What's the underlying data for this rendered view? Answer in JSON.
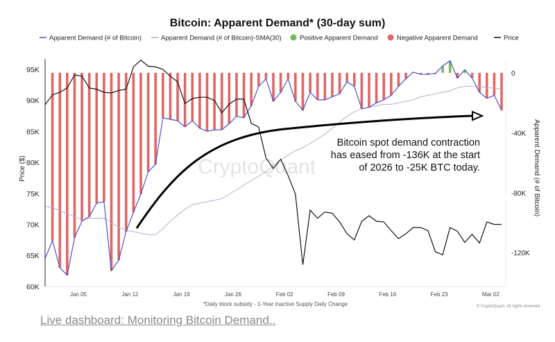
{
  "chart_data": {
    "type": "bar+line",
    "title": "Bitcoin: Apparent Demand* (30-day sum)",
    "legend": {
      "placement": "top",
      "entries": [
        {
          "label": "Apparent Demand (# of Bitcoin)",
          "symbol": "line",
          "color": "#5050c8"
        },
        {
          "label": "Apparent Demand (# of Bitcoin)-SMA(30)",
          "symbol": "line",
          "color": "#b0aed8"
        },
        {
          "label": "Positive Apparent Demand",
          "symbol": "dot",
          "color": "#6cc05a"
        },
        {
          "label": "Negative Apparent Demand",
          "symbol": "dot",
          "color": "#e06666"
        },
        {
          "label": "Price",
          "symbol": "line",
          "color": "#111111"
        }
      ]
    },
    "ylabel_left": "Price ($)",
    "ylabel_right": "Apparent Demand (# of Bitcoin)",
    "ylim_left": [
      60000,
      95000
    ],
    "ylim_right": [
      -136000,
      0
    ],
    "left_ticks": [
      "95K",
      "90K",
      "85K",
      "80K",
      "75K",
      "70K",
      "65K",
      "60K"
    ],
    "left_tick_values": [
      95,
      90,
      85,
      80,
      75,
      70,
      65,
      60
    ],
    "right_ticks": [
      "0",
      "-40K",
      "-80K",
      "-120K"
    ],
    "right_tick_values": [
      0,
      -40,
      -80,
      -120
    ],
    "x_ticks": [
      "Jan 05",
      "Jan 12",
      "Jan 19",
      "Jan 26",
      "Feb 02",
      "Feb 09",
      "Feb 16",
      "Feb 23",
      "Mar 02"
    ],
    "grid": false,
    "x": [
      "Dec 31",
      "Jan 01",
      "Jan 02",
      "Jan 03",
      "Jan 04",
      "Jan 05",
      "Jan 06",
      "Jan 07",
      "Jan 08",
      "Jan 09",
      "Jan 10",
      "Jan 11",
      "Jan 12",
      "Jan 13",
      "Jan 14",
      "Jan 15",
      "Jan 16",
      "Jan 17",
      "Jan 18",
      "Jan 19",
      "Jan 20",
      "Jan 21",
      "Jan 22",
      "Jan 23",
      "Jan 24",
      "Jan 25",
      "Jan 26",
      "Jan 27",
      "Jan 28",
      "Jan 29",
      "Jan 30",
      "Jan 31",
      "Feb 01",
      "Feb 02",
      "Feb 03",
      "Feb 04",
      "Feb 05",
      "Feb 06",
      "Feb 07",
      "Feb 08",
      "Feb 09",
      "Feb 10",
      "Feb 11",
      "Feb 12",
      "Feb 13",
      "Feb 14",
      "Feb 15",
      "Feb 16",
      "Feb 17",
      "Feb 18",
      "Feb 19",
      "Feb 20",
      "Feb 21",
      "Feb 22",
      "Feb 23",
      "Feb 24",
      "Feb 25",
      "Feb 26",
      "Feb 27",
      "Feb 28",
      "Mar 01",
      "Mar 02",
      "Mar 03"
    ],
    "series": [
      {
        "name": "Apparent Demand (# of Bitcoin)",
        "unit": "K BTC",
        "axis": "right",
        "values": [
          -124,
          -112,
          -130,
          -135,
          -110,
          -99,
          -96,
          -87,
          -86,
          -132,
          -125,
          -106,
          -93,
          -81,
          -66,
          -61,
          -30,
          -31,
          -32,
          -36,
          -32,
          -37,
          -39,
          -38,
          -38,
          -34,
          -29,
          -30,
          -22,
          -9,
          -4,
          -19,
          -13,
          -4,
          -19,
          -25,
          -13,
          -18,
          -18,
          -16,
          -14,
          -6,
          -9,
          -24,
          -23,
          -20,
          -18,
          -15,
          -9,
          -4,
          0.5,
          -1,
          -1,
          -0.5,
          4.6,
          8,
          -3.5,
          2,
          -3.5,
          -13,
          -17,
          -15,
          -25
        ]
      },
      {
        "name": "Apparent Demand (# of Bitcoin)-SMA(30)",
        "unit": "K BTC",
        "axis": "right",
        "values": [
          -89,
          -90,
          -92,
          -94,
          -96,
          -98,
          -97,
          -97,
          -97,
          -100,
          -103,
          -105,
          -106,
          -107,
          -108,
          -108,
          -104,
          -99,
          -95,
          -91,
          -88,
          -87,
          -86,
          -85,
          -84,
          -81,
          -78,
          -75,
          -72,
          -69,
          -66,
          -62,
          -58,
          -55,
          -52,
          -50,
          -47,
          -44,
          -41,
          -37,
          -33,
          -29,
          -26,
          -24,
          -23,
          -22,
          -21,
          -21,
          -20,
          -19,
          -18,
          -16,
          -15,
          -14,
          -13,
          -12,
          -10,
          -9,
          -9,
          -9,
          -10,
          -10,
          -11
        ]
      },
      {
        "name": "Price",
        "unit": "K USD",
        "axis": "left",
        "values": [
          89.3,
          90.9,
          91.3,
          92.0,
          94.1,
          93.9,
          92.0,
          91.8,
          91.3,
          91.2,
          91.6,
          91.8,
          95.4,
          96.5,
          95.5,
          95.4,
          95.0,
          93.9,
          93.0,
          89.5,
          90.3,
          90.5,
          90.5,
          90.0,
          88.0,
          89.4,
          90.2,
          90.2,
          86.3,
          85.7,
          80.7,
          79.0,
          80.5,
          77.9,
          74.9,
          63.5,
          72.3,
          71.0,
          72.0,
          71.8,
          70.4,
          68.5,
          67.5,
          70.5,
          71.4,
          70.5,
          70.4,
          69.0,
          67.7,
          68.5,
          69.5,
          69.5,
          69.0,
          65.6,
          65.1,
          69.5,
          68.9,
          67.1,
          68.4,
          67.0,
          70.4,
          70.0,
          70.0
        ]
      }
    ],
    "annotation": [
      "Bitcoin spot  demand contraction",
      "has eased from -136K at the start",
      "of 2026 to -25K BTC today."
    ],
    "footnote": "*Daily block subsidy - 1-Year Inactive Supply Daily Change",
    "copyright": "© CryptoQuant. All rights reserved",
    "watermark": "CryptoQuant",
    "colors": {
      "demand": "#5050c8",
      "sma": "#b0aed8",
      "positive": "#6cc05a",
      "negative": "#e06666",
      "price": "#111111"
    }
  },
  "link_text": "Live dashboard: Monitoring Bitcoin Demand.."
}
